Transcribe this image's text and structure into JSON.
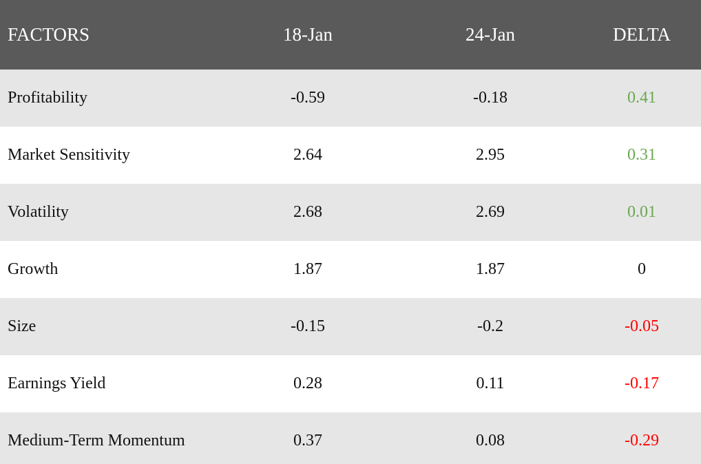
{
  "header": {
    "factors": "FACTORS",
    "date1": "18-Jan",
    "date2": "24-Jan",
    "delta": "DELTA"
  },
  "rows": [
    {
      "factor": "Profitability",
      "d1": "-0.59",
      "d2": "-0.18",
      "delta": "0.41",
      "sign": "pos"
    },
    {
      "factor": "Market Sensitivity",
      "d1": "2.64",
      "d2": "2.95",
      "delta": "0.31",
      "sign": "pos"
    },
    {
      "factor": "Volatility",
      "d1": "2.68",
      "d2": "2.69",
      "delta": "0.01",
      "sign": "pos"
    },
    {
      "factor": "Growth",
      "d1": "1.87",
      "d2": "1.87",
      "delta": "0",
      "sign": "zero"
    },
    {
      "factor": "Size",
      "d1": "-0.15",
      "d2": "-0.2",
      "delta": "-0.05",
      "sign": "neg"
    },
    {
      "factor": "Earnings Yield",
      "d1": "0.28",
      "d2": "0.11",
      "delta": "-0.17",
      "sign": "neg"
    },
    {
      "factor": "Medium-Term Momentum",
      "d1": "0.37",
      "d2": "0.08",
      "delta": "-0.29",
      "sign": "neg"
    }
  ],
  "colors": {
    "header_bg": "#5a5a5a",
    "row_stripe": "#e6e6e6",
    "positive": "#6aa84f",
    "negative": "#ff0000"
  }
}
